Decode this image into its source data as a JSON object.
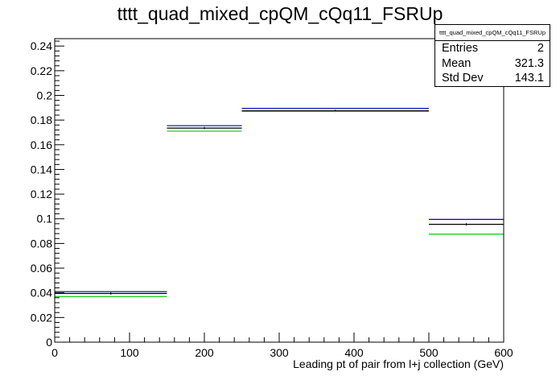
{
  "chart_data": {
    "type": "histogram",
    "title": "tttt_quad_mixed_cpQM_cQq11_FSRUp",
    "xlabel": "Leading pt of pair from l+j collection (GeV)",
    "ylabel": "",
    "xlim": [
      0,
      600
    ],
    "ylim": [
      0,
      0.246
    ],
    "x_ticks": [
      0,
      100,
      200,
      300,
      400,
      500,
      600
    ],
    "y_ticks": [
      0,
      0.02,
      0.04,
      0.06,
      0.08,
      0.1,
      0.12,
      0.14,
      0.16,
      0.18,
      0.2,
      0.22,
      0.24
    ],
    "grid": false,
    "bin_edges": [
      0,
      150,
      250,
      500,
      600
    ],
    "series": [
      {
        "color": "#000000",
        "values": [
          0.0395,
          0.1735,
          0.1875,
          0.0955
        ]
      },
      {
        "color": "#0000cc",
        "values": [
          0.041,
          0.1755,
          0.1895,
          0.0995
        ]
      },
      {
        "color": "#00cc00",
        "values": [
          0.037,
          0.171,
          0.187,
          0.0875
        ]
      }
    ],
    "stats_box": {
      "name": "tttt_quad_mixed_cpQM_cQq11_FSRUp",
      "rows": [
        {
          "label": "Entries",
          "value": "2"
        },
        {
          "label": "Mean",
          "value": "321.3"
        },
        {
          "label": "Std Dev",
          "value": "143.1"
        }
      ]
    }
  }
}
